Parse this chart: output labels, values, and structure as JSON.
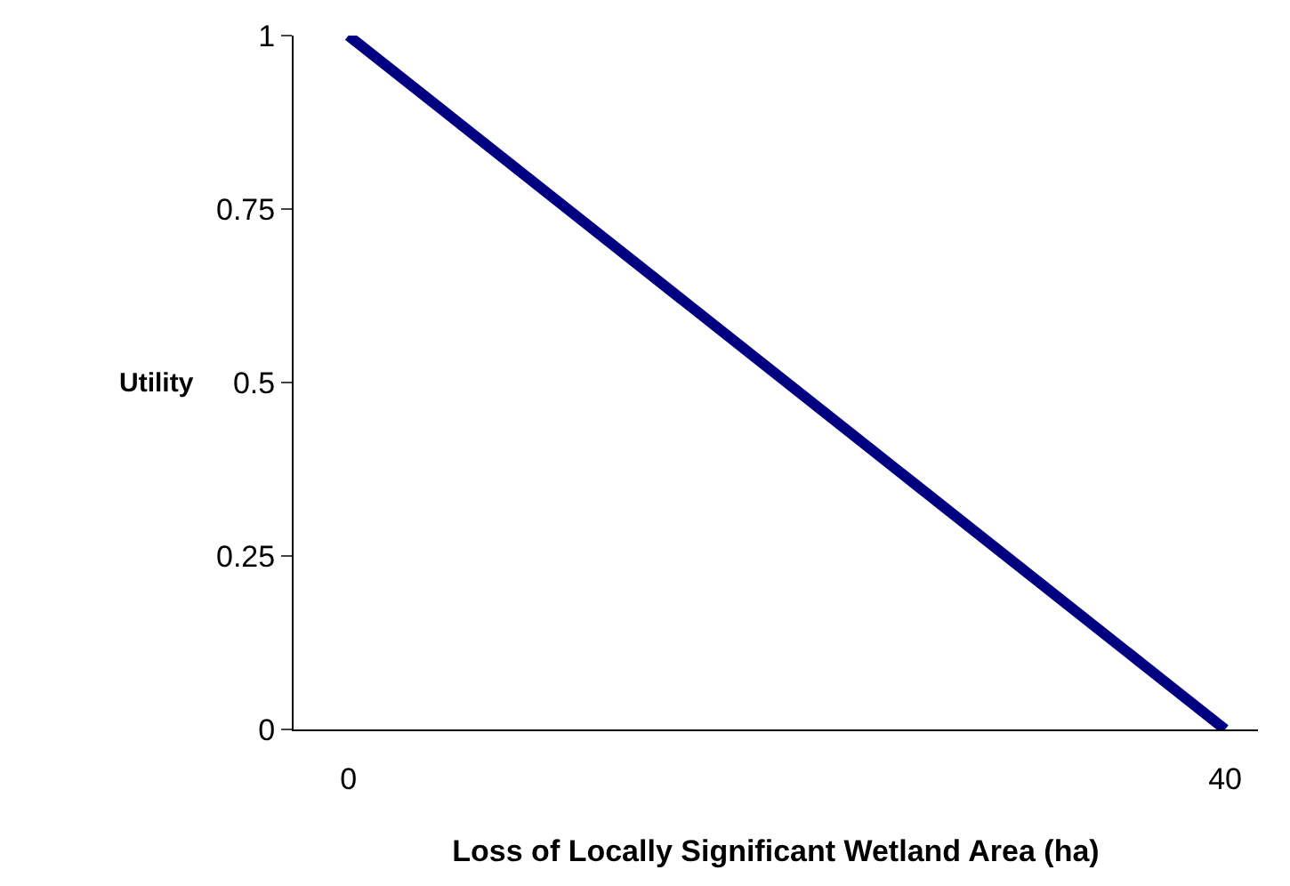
{
  "chart_data": {
    "type": "line",
    "xlabel": "Loss of Locally Significant Wetland Area (ha)",
    "ylabel": "Utility",
    "x": [
      0,
      40
    ],
    "series": [
      {
        "color": "#000080",
        "values": [
          1,
          0
        ]
      }
    ],
    "xlim": [
      -2.5,
      41.5
    ],
    "xticks": [
      0,
      40
    ],
    "ylim": [
      0,
      1
    ],
    "yticks": [
      0,
      0.25,
      0.5,
      0.75,
      1
    ],
    "marker": "none",
    "line_style": "solid"
  }
}
